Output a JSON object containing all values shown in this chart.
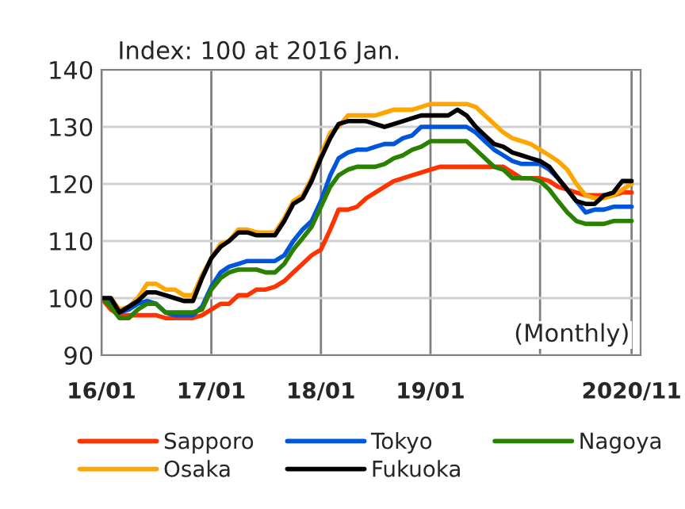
{
  "chart_data": {
    "type": "line",
    "x": [
      "2016-01",
      "2016-02",
      "2016-03",
      "2016-04",
      "2016-05",
      "2016-06",
      "2016-07",
      "2016-08",
      "2016-09",
      "2016-10",
      "2016-11",
      "2016-12",
      "2017-01",
      "2017-02",
      "2017-03",
      "2017-04",
      "2017-05",
      "2017-06",
      "2017-07",
      "2017-08",
      "2017-09",
      "2017-10",
      "2017-11",
      "2017-12",
      "2018-01",
      "2018-02",
      "2018-03",
      "2018-04",
      "2018-05",
      "2018-06",
      "2018-07",
      "2018-08",
      "2018-09",
      "2018-10",
      "2018-11",
      "2018-12",
      "2019-01",
      "2019-02",
      "2019-03",
      "2019-04",
      "2019-05",
      "2019-06",
      "2019-07",
      "2019-08",
      "2019-09",
      "2019-10",
      "2019-11",
      "2019-12",
      "2020-01",
      "2020-02",
      "2020-03",
      "2020-04",
      "2020-05",
      "2020-06",
      "2020-07",
      "2020-08",
      "2020-09",
      "2020-10",
      "2020-11"
    ],
    "series": [
      {
        "name": "Sapporo",
        "color": "#ff3300",
        "values": [
          100,
          98,
          97,
          97,
          97,
          97,
          97,
          96.5,
          96.5,
          96.5,
          96.5,
          97,
          98,
          99,
          99,
          100.5,
          100.5,
          101.5,
          101.5,
          102,
          103,
          104.5,
          106,
          107.5,
          108.5,
          112,
          115.5,
          115.5,
          116,
          117.5,
          118.5,
          119.5,
          120.5,
          121,
          121.5,
          122,
          122.5,
          123,
          123,
          123,
          123,
          123,
          123,
          123,
          123,
          122,
          121,
          121,
          121,
          120.5,
          119.5,
          119,
          118.5,
          118,
          118,
          118,
          118,
          118.5,
          118.5
        ]
      },
      {
        "name": "Tokyo",
        "color": "#0055dd",
        "values": [
          100,
          99.5,
          97.5,
          98,
          99,
          99.5,
          99,
          97.5,
          97,
          97,
          97,
          98.5,
          102,
          104.5,
          105.5,
          106,
          106.5,
          106.5,
          106.5,
          106.5,
          107.5,
          110,
          112,
          113.5,
          117,
          121.5,
          124.5,
          125.5,
          126,
          126,
          126.5,
          127,
          127,
          128,
          128.5,
          130,
          130,
          130,
          130,
          130,
          130,
          129,
          127.5,
          126,
          125,
          124,
          123.5,
          123.5,
          123.5,
          122.5,
          121,
          119,
          117,
          115,
          115.5,
          115.5,
          116,
          116,
          116
        ]
      },
      {
        "name": "Nagoya",
        "color": "#2a8000",
        "values": [
          100,
          98.5,
          96.5,
          96.5,
          98,
          99,
          99,
          97.5,
          97.5,
          97.5,
          97.5,
          98,
          101.5,
          103.5,
          104.5,
          105,
          105,
          105,
          104.5,
          104.5,
          106,
          108.5,
          110.5,
          112.5,
          116,
          119.5,
          121.5,
          122.5,
          123,
          123,
          123,
          123.5,
          124.5,
          125,
          126,
          126.5,
          127.5,
          127.5,
          127.5,
          127.5,
          127.5,
          126,
          124.5,
          123,
          122.5,
          121,
          121,
          121,
          120.5,
          119,
          117,
          115,
          113.5,
          113,
          113,
          113,
          113.5,
          113.5,
          113.5
        ]
      },
      {
        "name": "Osaka",
        "color": "#ffa500",
        "values": [
          100,
          100,
          98,
          98.5,
          100,
          102.5,
          102.5,
          101.5,
          101.5,
          100.5,
          100.5,
          104,
          107,
          109.5,
          110,
          112,
          112,
          111.5,
          111.5,
          111.5,
          114,
          117,
          118,
          121,
          125,
          129,
          130,
          132,
          132,
          132,
          132,
          132.5,
          133,
          133,
          133,
          133.5,
          134,
          134,
          134,
          134,
          134,
          133.5,
          132,
          130.5,
          129,
          128,
          127.5,
          127,
          126,
          125,
          124,
          122.5,
          120,
          118,
          117.5,
          117.5,
          118,
          119,
          120
        ]
      },
      {
        "name": "Fukuoka",
        "color": "#000000",
        "values": [
          100,
          100,
          97.5,
          98.5,
          99.5,
          101,
          101,
          100.5,
          100,
          99.5,
          99.5,
          103.5,
          107,
          109,
          110,
          111.5,
          111.5,
          111,
          111,
          111,
          113.5,
          116.5,
          117.5,
          120.5,
          124.5,
          128,
          130.5,
          131,
          131,
          131,
          130.5,
          130,
          130.5,
          131,
          131.5,
          132,
          132,
          132,
          132,
          133,
          132,
          130,
          128.5,
          127,
          126.5,
          125.5,
          125,
          124.5,
          124,
          123,
          121,
          119,
          117,
          116.5,
          116.5,
          118,
          118.5,
          120.5,
          120.5
        ]
      }
    ],
    "xlim": [
      "2016-01",
      "2020-12"
    ],
    "xticks": [
      {
        "value": "2016-01",
        "label": "16/01"
      },
      {
        "value": "2017-01",
        "label": "17/01"
      },
      {
        "value": "2018-01",
        "label": "18/01"
      },
      {
        "value": "2019-01",
        "label": "19/01"
      },
      {
        "value": "2020-01",
        "label": null
      },
      {
        "value": "2020-11",
        "label": "2020/11"
      }
    ],
    "ylim": [
      90,
      140
    ],
    "yticks": [
      90,
      100,
      110,
      120,
      130,
      140
    ],
    "grid": true,
    "legend": "bottom",
    "annotations": [
      "Index: 100 at 2016 Jan.",
      "(Monthly)"
    ]
  }
}
